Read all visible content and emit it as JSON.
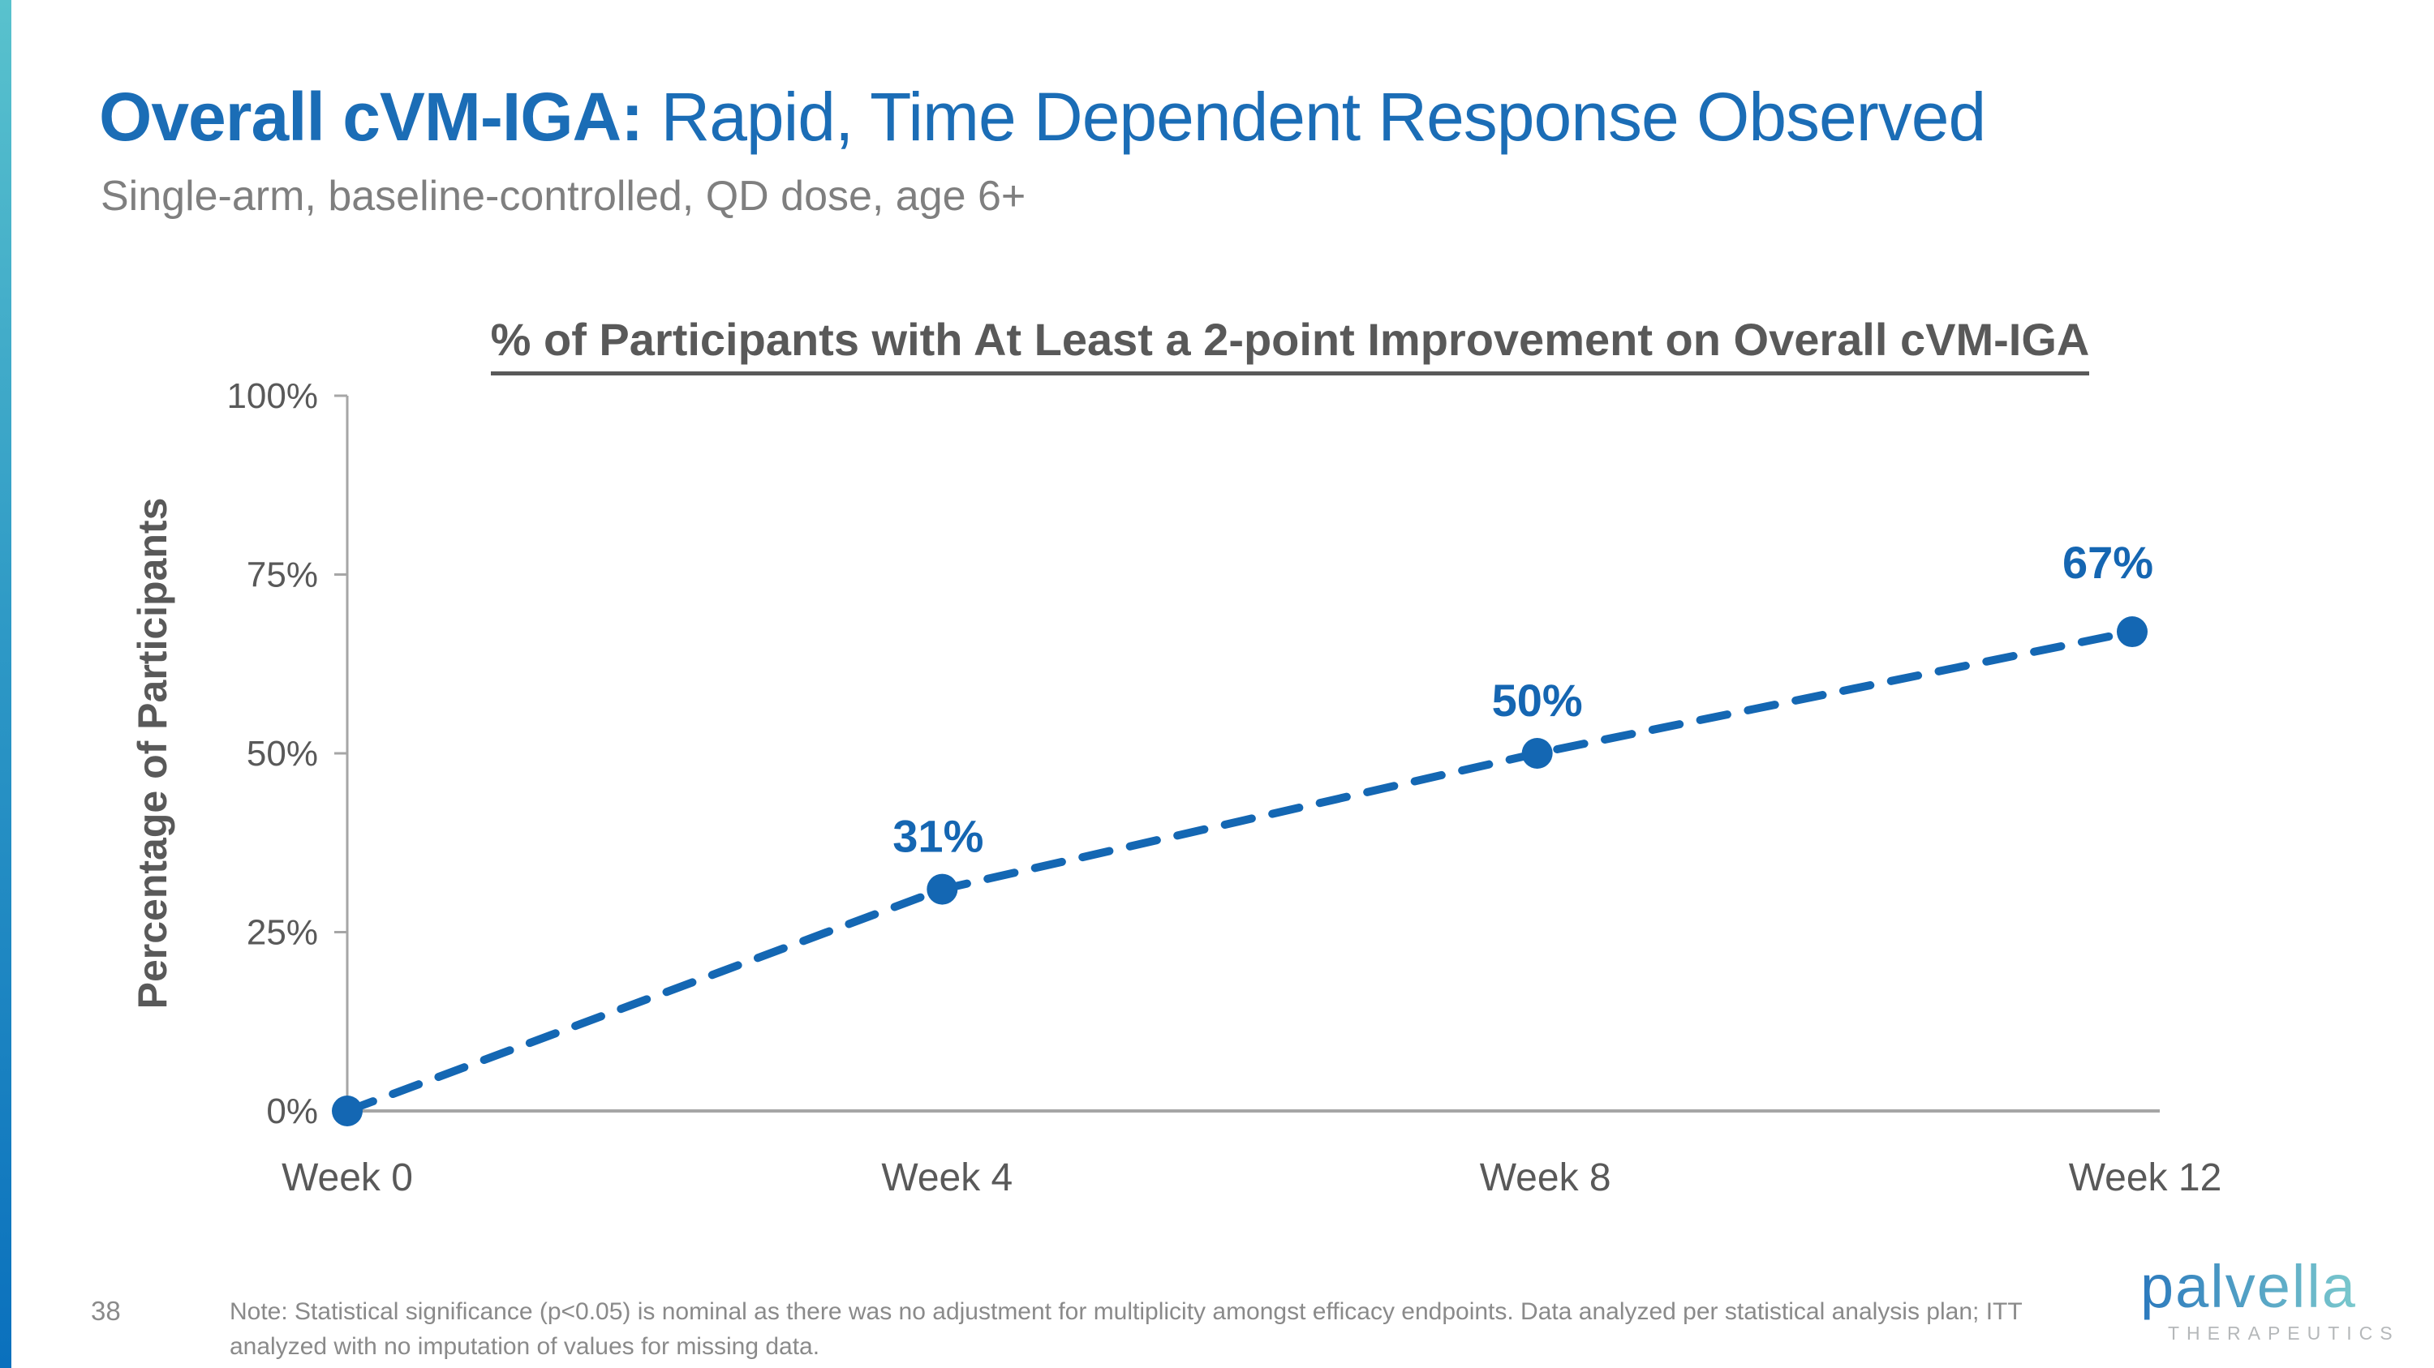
{
  "slide": {
    "title_bold": "Overall cVM-IGA:",
    "title_rest": " Rapid, Time Dependent Response Observed",
    "subtitle": "Single-arm, baseline-controlled, QD dose, age 6+",
    "page_number": "38",
    "note": "Note: Statistical significance (p<0.05) is nominal as there was no adjustment for multiplicity amongst efficacy endpoints. Data analyzed per statistical analysis plan; ITT analyzed with no imputation of values for missing data.",
    "logo_text": "palvella",
    "logo_subtext": "THERAPEUTICS"
  },
  "colors": {
    "title_blue": "#1B6DB6",
    "chart_blue": "#1467B3",
    "point_label_blue": "#1566B2",
    "axis_gray": "#A6A6A6",
    "dark_text_gray": "#595959",
    "subtitle_gray": "#7F7F7F",
    "note_gray": "#8A8A8A",
    "logo_sub_gray": "#B5B8BA",
    "bar_gradient_top": "#59C2CD",
    "bar_gradient_bottom": "#0A70BD"
  },
  "chart_data": {
    "type": "line",
    "title": "% of Participants with At Least a 2-point Improvement on Overall cVM-IGA",
    "categories": [
      "Week 0",
      "Week 4",
      "Week 8",
      "Week 12"
    ],
    "values": [
      0,
      31,
      50,
      67
    ],
    "point_labels": [
      "",
      "31%",
      "50%",
      "67%"
    ],
    "series_name": "% of participants with at least 2-point improvement",
    "xlabel": "",
    "ylabel": "Percentage of Participants",
    "ylim": [
      0,
      100
    ],
    "yticks": [
      0,
      25,
      50,
      75,
      100
    ],
    "ytick_labels": [
      "0%",
      "25%",
      "50%",
      "75%",
      "100%"
    ],
    "grid": false,
    "legend": "none",
    "line_style": "dashed",
    "marker": "circle",
    "line_color": "#1467B3",
    "axis_color": "#A6A6A6"
  }
}
